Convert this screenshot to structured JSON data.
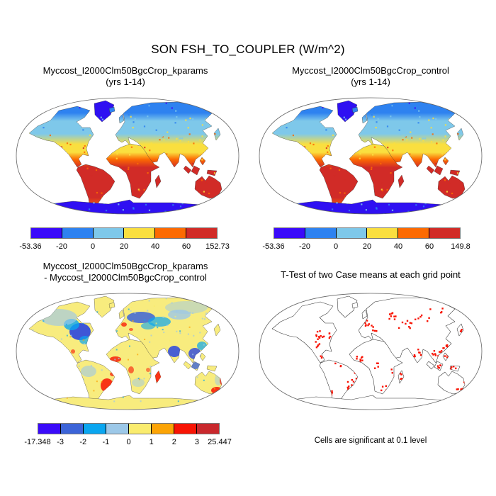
{
  "main_title": "SON FSH_TO_COUPLER (W/m^2)",
  "panels": {
    "top_left": {
      "title": "Myccost_I2000Clm50BgcCrop_kparams",
      "subtitle": "(yrs 1-14)"
    },
    "top_right": {
      "title": "Myccost_I2000Clm50BgcCrop_control",
      "subtitle": "(yrs 1-14)"
    },
    "bottom_left": {
      "title": "Myccost_I2000Clm50BgcCrop_kparams",
      "subtitle": "- Myccost_I2000Clm50BgcCrop_control"
    },
    "bottom_right": {
      "title": "T-Test of two Case means at each grid point",
      "caption": "Cells are significant at 0.1 level"
    }
  },
  "chart_data": [
    {
      "panel": "top_left",
      "type": "heatmap",
      "projection": "robinson-world-map",
      "title": "Myccost_I2000Clm50BgcCrop_kparams (yrs 1-14)",
      "season": "SON",
      "variable": "FSH_TO_COUPLER",
      "units": "W/m^2",
      "min": -53.36,
      "max": 152.73,
      "colorbar_ticks": [
        "-53.36",
        "-20",
        "0",
        "20",
        "40",
        "60",
        "152.73"
      ],
      "colorbar_colors": [
        "#3a0afa",
        "#2e82f0",
        "#7ec8ea",
        "#fadf3f",
        "#fc6a02",
        "#d12b27"
      ],
      "pattern": "Greenland and Antarctica deep blue; high northern latitudes blue to light blue; mid-latitudes yellow; subtropics orange; tropics, Africa, South America and Australia red; oceans blank"
    },
    {
      "panel": "top_right",
      "type": "heatmap",
      "projection": "robinson-world-map",
      "title": "Myccost_I2000Clm50BgcCrop_control (yrs 1-14)",
      "season": "SON",
      "variable": "FSH_TO_COUPLER",
      "units": "W/m^2",
      "min": -53.36,
      "max": 149.8,
      "colorbar_ticks": [
        "-53.36",
        "-20",
        "0",
        "20",
        "40",
        "60",
        "149.8"
      ],
      "colorbar_colors": [
        "#3a0afa",
        "#2e82f0",
        "#7ec8ea",
        "#fadf3f",
        "#fc6a02",
        "#d12b27"
      ],
      "pattern": "visually identical distribution to kparams case: blue high latitudes, yellow mid-latitudes, orange subtropics, red tropics and southern continents"
    },
    {
      "panel": "bottom_left",
      "type": "heatmap",
      "projection": "robinson-world-map",
      "title": "Myccost_I2000Clm50BgcCrop_kparams - Myccost_I2000Clm50BgcCrop_control",
      "units": "W/m^2",
      "min": -17.348,
      "max": 25.447,
      "colorbar_ticks": [
        "-17.348",
        "-3",
        "-2",
        "-1",
        "0",
        "1",
        "2",
        "3",
        "25.447"
      ],
      "colorbar_colors": [
        "#3a0afa",
        "#3c64d8",
        "#0aa6f0",
        "#9cc8e8",
        "#faec6e",
        "#fca405",
        "#f81404",
        "#c9282d"
      ],
      "pattern": "difference map: land mostly pale yellow (near zero) with light-blue speckle; strong blue patches over eastern North America, northern Europe/Russia, India, Southeast Asia and Borneo; red patches over southeastern Brazil, west African coast, central Africa, Madagascar and southeastern Australia; Antarctica pale yellow"
    },
    {
      "panel": "bottom_right",
      "type": "map",
      "projection": "robinson-world-map",
      "title": "T-Test of two Case means at each grid point",
      "caption": "Cells are significant at 0.1 level",
      "significance_level": 0.1,
      "significant_color": "#f81404",
      "pattern": "white outline map; red cells mark significant differences over eastern North America, western/eastern Europe, Russia, Kazakhstan, India, Southeast Asia, southern China, Indonesia, eastern Brazil, west and central Africa, Madagascar, southern Africa and southeastern Australia"
    }
  ]
}
